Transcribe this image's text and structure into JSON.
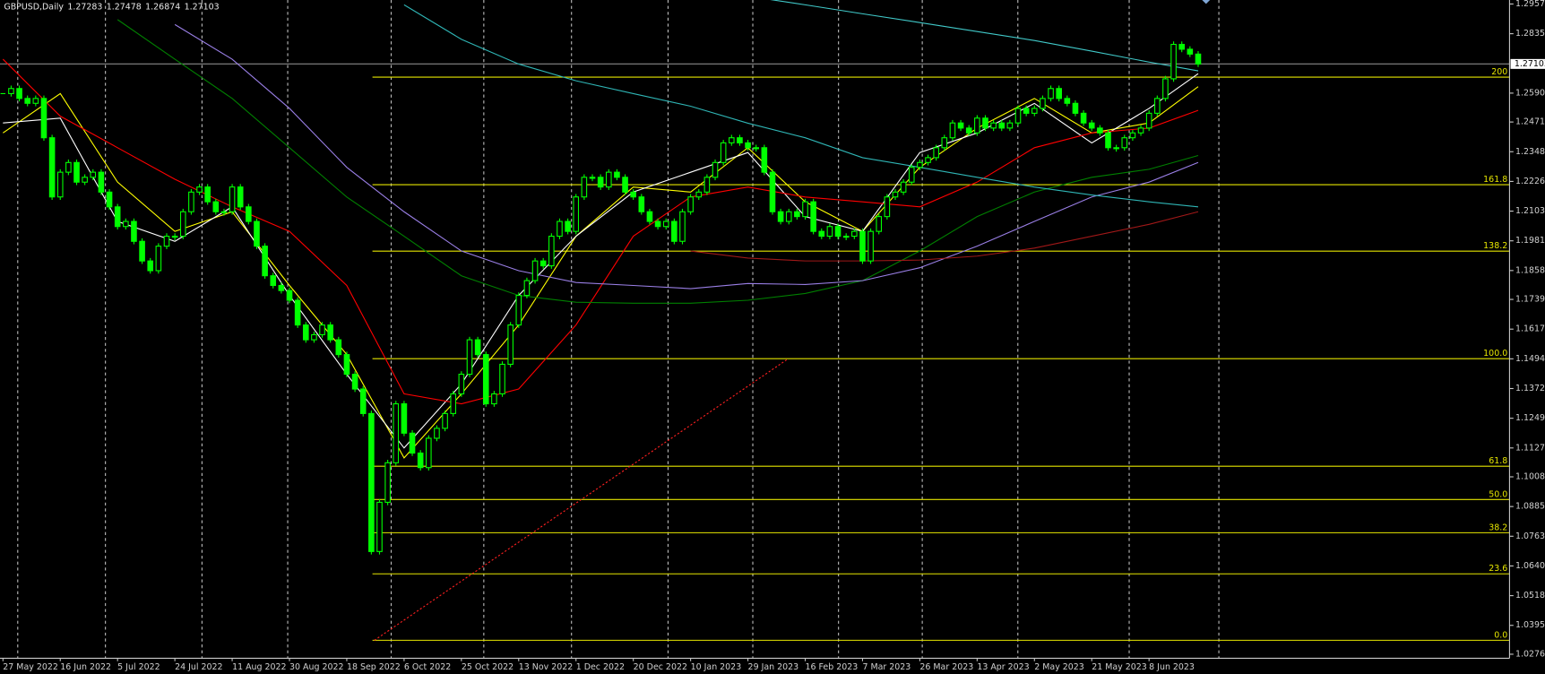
{
  "chart_data": {
    "type": "candlestick",
    "symbol": "GBPUSD,Daily",
    "ohlc": [
      1.27283,
      1.27478,
      1.26874,
      1.27103
    ],
    "color": "#00ff00",
    "categories": [
      "27 May 2022",
      null,
      null,
      null,
      null,
      null,
      null,
      "16 Jun 2022",
      null,
      null,
      null,
      null,
      null,
      null,
      "5 Jul 2022",
      null,
      null,
      null,
      null,
      null,
      null,
      "24 Jul 2022",
      null,
      null,
      null,
      null,
      null,
      null,
      "11 Aug 2022",
      null,
      null,
      null,
      null,
      null,
      null,
      "30 Aug 2022",
      null,
      null,
      null,
      null,
      null,
      null,
      "18 Sep 2022",
      null,
      null,
      null,
      null,
      null,
      null,
      "6 Oct 2022",
      null,
      null,
      null,
      null,
      null,
      null,
      "25 Oct 2022",
      null,
      null,
      null,
      null,
      null,
      null,
      "13 Nov 2022",
      null,
      null,
      null,
      null,
      null,
      null,
      "1 Dec 2022",
      null,
      null,
      null,
      null,
      null,
      null,
      "20 Dec 2022",
      null,
      null,
      null,
      null,
      null,
      null,
      "10 Jan 2023",
      null,
      null,
      null,
      null,
      null,
      null,
      "29 Jan 2023",
      null,
      null,
      null,
      null,
      null,
      null,
      "16 Feb 2023",
      null,
      null,
      null,
      null,
      null,
      null,
      "7 Mar 2023",
      null,
      null,
      null,
      null,
      null,
      null,
      "26 Mar 2023",
      null,
      null,
      null,
      null,
      null,
      null,
      "13 Apr 2023",
      null,
      null,
      null,
      null,
      null,
      null,
      "2 May 2023",
      null,
      null,
      null,
      null,
      null,
      null,
      "21 May 2023",
      null,
      null,
      null,
      null,
      null,
      null,
      "8 Jun 2023",
      null,
      null,
      null,
      null,
      null,
      null
    ],
    "values": [
      1.2588,
      1.2609,
      1.2568,
      1.2548,
      1.2568,
      1.2406,
      1.2162,
      1.2264,
      1.2304,
      1.2223,
      1.2243,
      1.2264,
      1.2182,
      1.2121,
      1.204,
      1.2061,
      1.1979,
      1.1898,
      1.1858,
      1.1959,
      1.2,
      1.2,
      1.2101,
      1.2182,
      1.2203,
      1.2142,
      1.2101,
      1.2101,
      1.2203,
      1.2121,
      1.2061,
      1.1959,
      1.1837,
      1.1797,
      1.1776,
      1.1736,
      1.1634,
      1.1573,
      1.1594,
      1.1634,
      1.1573,
      1.1512,
      1.1431,
      1.137,
      1.1269,
      1.07,
      1.0903,
      1.1066,
      1.1309,
      1.1188,
      1.1106,
      1.1046,
      1.1167,
      1.1208,
      1.1269,
      1.135,
      1.1431,
      1.1573,
      1.1512,
      1.1309,
      1.135,
      1.1472,
      1.1634,
      1.1756,
      1.1817,
      1.1898,
      1.1878,
      1.2,
      1.2061,
      1.202,
      1.2162,
      1.2243,
      1.2243,
      1.2203,
      1.2264,
      1.2243,
      1.2182,
      1.2162,
      1.2101,
      1.2061,
      1.204,
      1.2061,
      1.1979,
      1.2101,
      1.2162,
      1.2182,
      1.2243,
      1.2304,
      1.2385,
      1.2406,
      1.2385,
      1.2365,
      1.2365,
      1.2264,
      1.2101,
      1.2061,
      1.2101,
      1.2081,
      1.2142,
      1.202,
      1.2,
      1.204,
      1.2,
      1.2,
      1.202,
      1.1898,
      1.202,
      1.2081,
      1.2162,
      1.2182,
      1.2223,
      1.2284,
      1.2304,
      1.2324,
      1.2365,
      1.2406,
      1.2467,
      1.2446,
      1.2426,
      1.2487,
      1.2446,
      1.2467,
      1.2446,
      1.2467,
      1.2527,
      1.2507,
      1.2527,
      1.2568,
      1.2609,
      1.2568,
      1.2548,
      1.2507,
      1.2467,
      1.2446,
      1.2426,
      1.2365,
      1.2365,
      1.2406,
      1.2426,
      1.2446,
      1.2507,
      1.2568,
      1.2649,
      1.2791,
      1.2771,
      1.2751,
      1.271
    ],
    "overlays": [
      {
        "color": "#ffff00",
        "values": [
          1.2426,
          1.2588,
          1.2223,
          1.202,
          1.2101,
          1.1797,
          1.1512,
          1.1086,
          1.135,
          1.1634,
          1.2,
          1.2203,
          1.2182,
          1.2365,
          1.2142,
          1.202,
          1.2284,
          1.2446,
          1.2568,
          1.2426,
          1.2467,
          1.2617
        ]
      },
      {
        "color": "#ffffff",
        "values": [
          1.2467,
          1.2487,
          1.2061,
          1.1979,
          1.2121,
          1.1756,
          1.1431,
          1.1127,
          1.1391,
          1.1756,
          1.2,
          1.2182,
          1.2264,
          1.2345,
          1.2081,
          1.202,
          1.2345,
          1.2426,
          1.2548,
          1.2385,
          1.2527,
          1.267
        ]
      },
      {
        "color": "#ff0000",
        "values": [
          1.273,
          1.2495,
          1.2365,
          1.2235,
          1.2121,
          1.202,
          1.1797,
          1.135,
          1.1309,
          1.137,
          1.1634,
          1.2,
          1.2162,
          1.2203,
          1.2162,
          1.2142,
          1.2121,
          1.2223,
          1.2365,
          1.2426,
          1.2446,
          1.2519
        ]
      },
      {
        "color": "#008000",
        "values": [
          null,
          null,
          1.2893,
          1.273,
          1.2568,
          1.2365,
          1.2162,
          1.2,
          1.1837,
          1.1756,
          1.1728,
          1.1724,
          1.1724,
          1.1736,
          1.1764,
          1.1817,
          1.1939,
          1.2081,
          1.2182,
          1.2243,
          1.2276,
          1.2333
        ]
      },
      {
        "color": "#9a7fe6",
        "values": [
          null,
          null,
          null,
          1.2873,
          1.273,
          1.2527,
          1.2284,
          1.2101,
          1.1939,
          1.1858,
          1.1809,
          1.1797,
          1.1784,
          1.1805,
          1.1801,
          1.1817,
          1.187,
          1.1959,
          1.2061,
          1.2162,
          1.2223,
          1.2304
        ]
      },
      {
        "color": "#2fb5b5",
        "values": [
          null,
          null,
          null,
          null,
          null,
          null,
          null,
          1.2954,
          1.2812,
          1.271,
          1.2641,
          1.2588,
          1.2536,
          1.2466,
          1.2406,
          1.2324,
          1.2284,
          1.2243,
          1.2203,
          1.217,
          1.2142,
          1.2121
        ]
      },
      {
        "color": "#40c8c8",
        "values": [
          null,
          null,
          null,
          null,
          null,
          null,
          null,
          null,
          null,
          null,
          null,
          null,
          null,
          1.299,
          1.2954,
          1.2917,
          1.2881,
          1.2844,
          1.2807,
          1.2763,
          1.2718,
          1.2682
        ]
      },
      {
        "color": "#a01818",
        "values": [
          null,
          null,
          null,
          null,
          null,
          null,
          null,
          null,
          null,
          null,
          null,
          null,
          1.1939,
          1.191,
          1.1898,
          1.1898,
          1.1902,
          1.1918,
          1.1951,
          1.2,
          1.2049,
          1.2101
        ]
      }
    ],
    "ylim": [
      1.026,
      1.2974
    ],
    "yticks": [
      1.29575,
      {
        "value": 1.2835,
        "label": "1.28350"
      },
      {
        "value": 1.259,
        "label": "1.25900"
      },
      {
        "value": 1.2471,
        "label": "1.24710"
      },
      1.23485,
      {
        "value": 1.2226,
        "label": "1.22260"
      },
      1.21035,
      {
        "value": 1.1981,
        "label": "1.19810"
      },
      1.18585,
      1.17395,
      {
        "value": 1.1617,
        "label": "1.16170"
      },
      1.14945,
      {
        "value": 1.1372,
        "label": "1.13720"
      },
      1.12495,
      {
        "value": 1.1127,
        "label": "1.11270"
      },
      {
        "value": 1.1008,
        "label": "1.10080"
      },
      1.08855,
      {
        "value": 1.0763,
        "label": "1.07630"
      },
      1.06405,
      {
        "value": 1.0518,
        "label": "1.05180"
      },
      1.03955,
      1.02765
    ],
    "fibo": {
      "low": 1.0334,
      "high": 1.1495,
      "color": "#e6e600",
      "levels": [
        200,
        161.8,
        138.2,
        {
          "value": 100,
          "label": "100.0"
        },
        61.8,
        {
          "value": 50,
          "label": "50.0"
        },
        38.2,
        23.6,
        {
          "value": 0,
          "label": "0.0"
        }
      ]
    },
    "period_separators": true
  }
}
